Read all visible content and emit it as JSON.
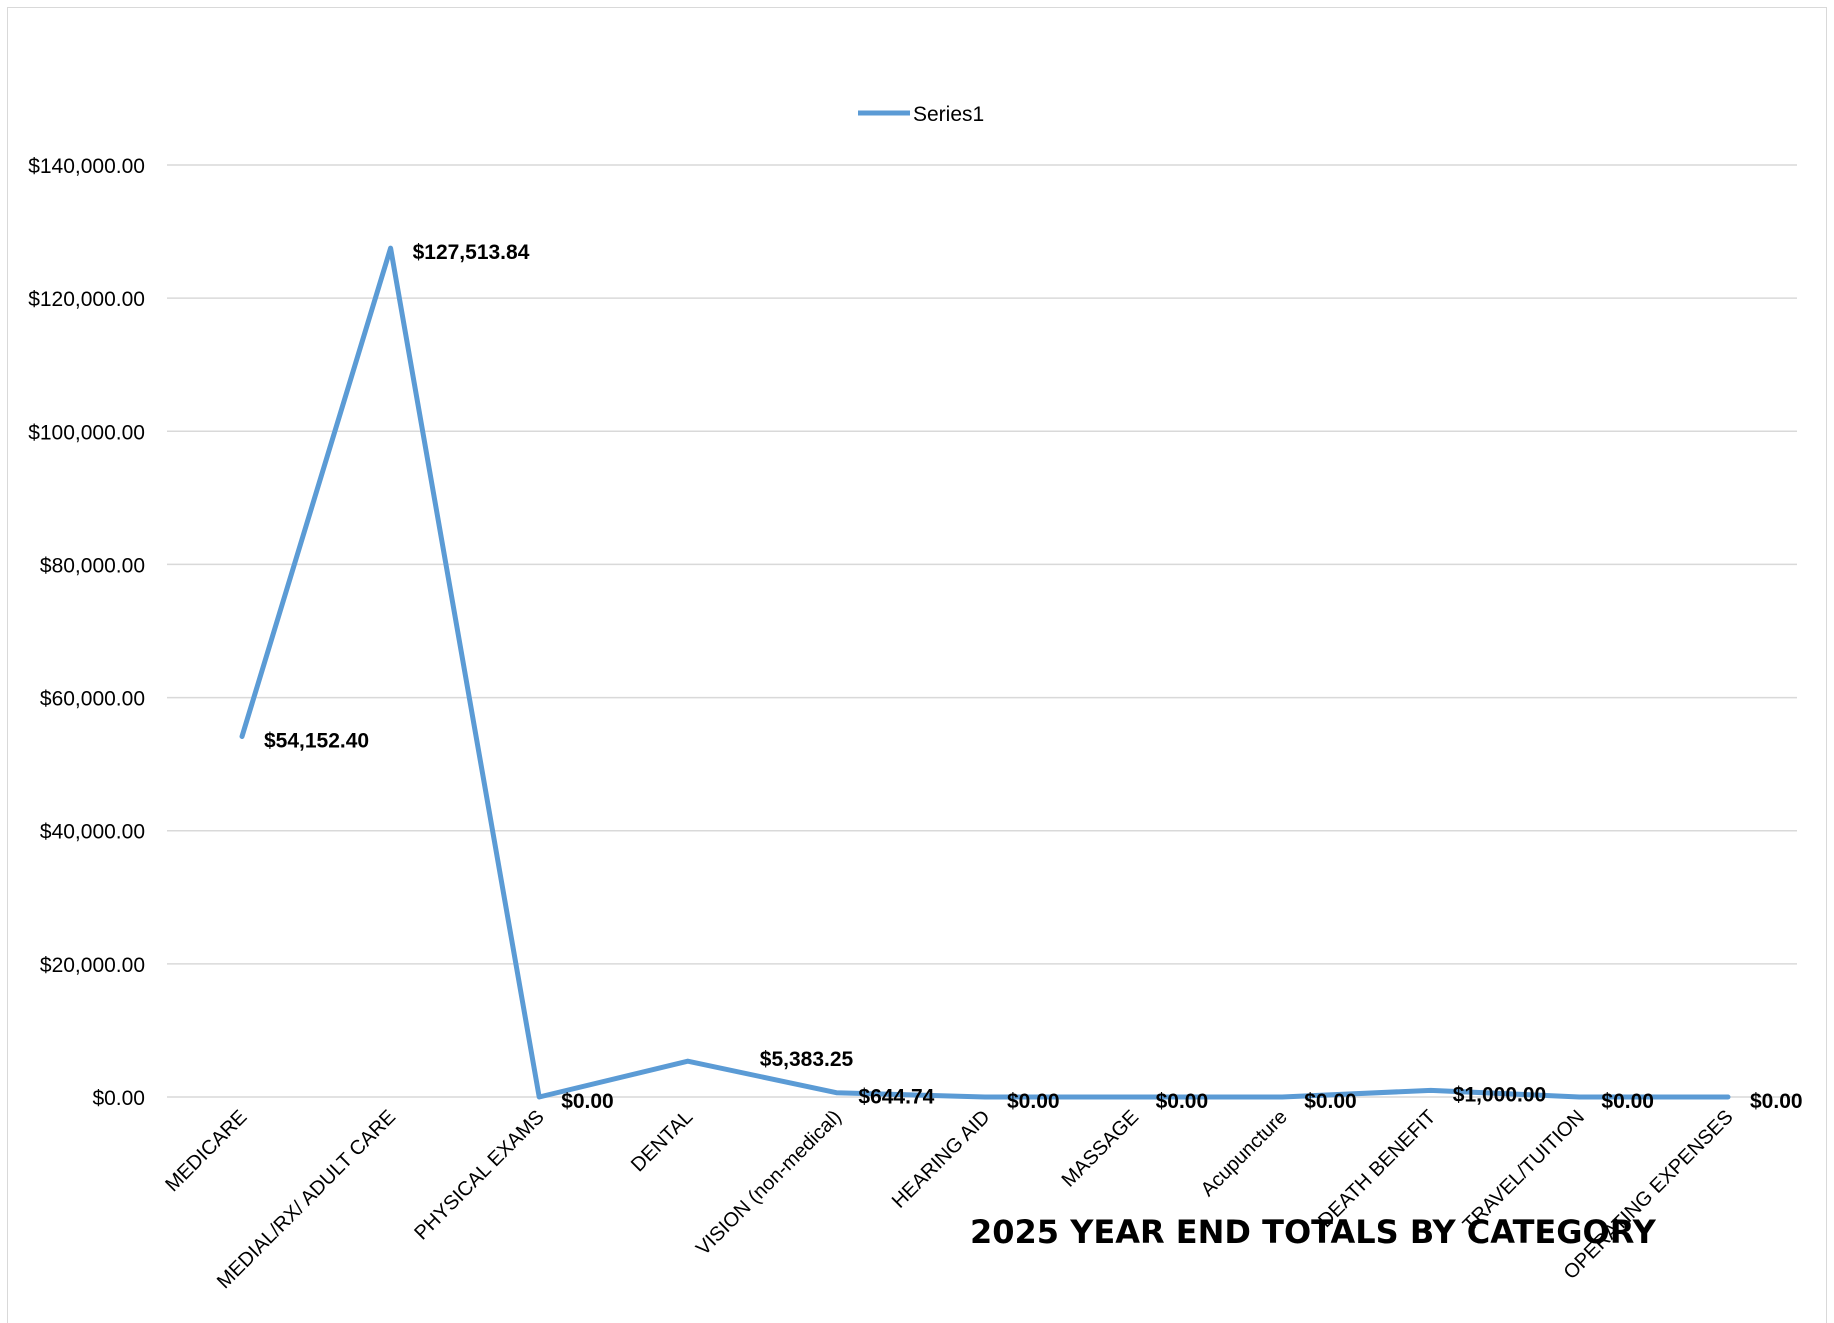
{
  "chart_data": {
    "type": "line",
    "title": "2025 YEAR END TOTALS BY CATEGORY",
    "categories": [
      "MEDICARE",
      "MEDIAL/RX/ ADULT CARE",
      "PHYSICAL EXAMS",
      "DENTAL",
      "VISION (non-medical)",
      "HEARING AID",
      "MASSAGE",
      "Acupuncture",
      "DEATH BENEFIT",
      "TRAVEL/TUITION",
      "OPERATING EXPENSES"
    ],
    "series": [
      {
        "name": "Series1",
        "values": [
          54152.4,
          127513.84,
          0.0,
          5383.25,
          644.74,
          0.0,
          0.0,
          0.0,
          1000.0,
          0.0,
          0.0
        ],
        "data_labels": [
          "$54,152.40",
          "$127,513.84",
          "$0.00",
          "$5,383.25",
          "$644.74",
          "$0.00",
          "$0.00",
          "$0.00",
          "$1,000.00",
          "$0.00",
          "$0.00"
        ],
        "color": "#5b9bd5"
      }
    ],
    "y_ticks": [
      "$0.00",
      "$20,000.00",
      "$40,000.00",
      "$60,000.00",
      "$80,000.00",
      "$100,000.00",
      "$120,000.00",
      "$140,000.00"
    ],
    "ylim": [
      0,
      140000
    ],
    "grid": true,
    "legend": "top-center"
  }
}
